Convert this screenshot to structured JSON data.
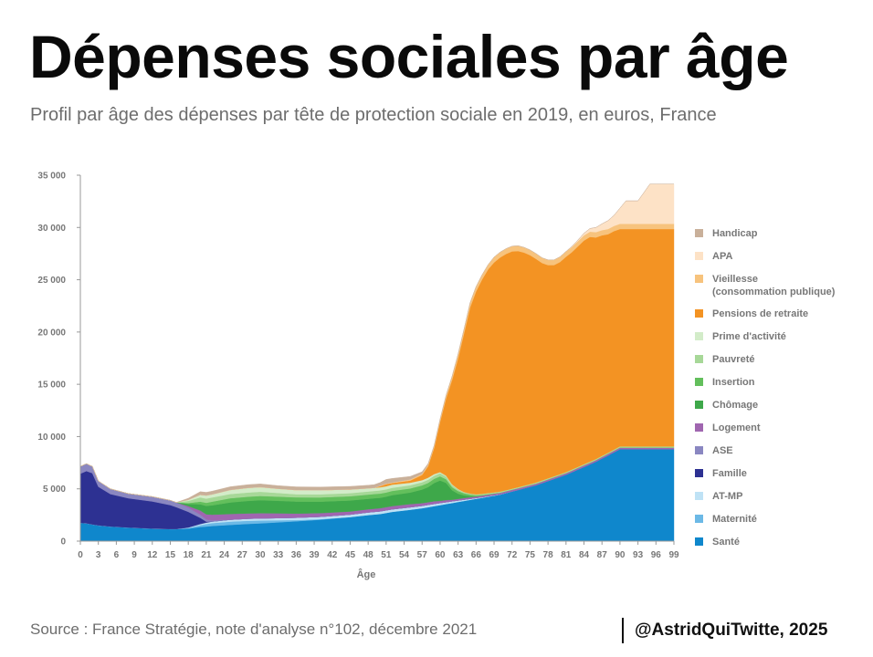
{
  "header": {
    "title": "Dépenses sociales par âge",
    "subtitle": "Profil par âge des dépenses par tête de protection sociale en 2019, en euros, France"
  },
  "footer": {
    "source": "Source : France Stratégie, note d'analyse n°102, décembre 2021",
    "credit": "@AstridQuiTwitte, 2025"
  },
  "chart_data": {
    "type": "area",
    "stacked": true,
    "xlabel": "Âge",
    "ylabel": "",
    "xlim": [
      0,
      99
    ],
    "ylim": [
      0,
      35000
    ],
    "x_ticks": [
      0,
      3,
      6,
      9,
      12,
      15,
      18,
      21,
      24,
      27,
      30,
      33,
      36,
      39,
      42,
      45,
      48,
      51,
      54,
      57,
      60,
      63,
      66,
      69,
      72,
      75,
      78,
      81,
      84,
      87,
      90,
      93,
      96,
      99
    ],
    "y_ticks": [
      0,
      5000,
      10000,
      15000,
      20000,
      25000,
      30000,
      35000
    ],
    "y_tick_labels": [
      "0",
      "5 000",
      "10 000",
      "15 000",
      "20 000",
      "25 000",
      "30 000",
      "35 000"
    ],
    "grid": false,
    "legend_position": "right",
    "x": [
      0,
      1,
      2,
      3,
      5,
      8,
      12,
      15,
      16,
      18,
      20,
      21,
      22,
      25,
      28,
      30,
      33,
      36,
      40,
      45,
      48,
      49,
      50,
      51,
      52,
      55,
      57,
      58,
      59,
      60,
      61,
      62,
      63,
      64,
      65,
      66,
      67,
      68,
      69,
      70,
      71,
      72,
      73,
      74,
      75,
      76,
      77,
      78,
      79,
      80,
      81,
      82,
      83,
      84,
      85,
      86,
      87,
      88,
      89,
      90,
      91,
      92,
      93,
      94,
      95,
      96,
      97,
      98,
      99
    ],
    "series": [
      {
        "name": "Santé",
        "color": "#0f87cc",
        "values": [
          1750,
          1700,
          1600,
          1500,
          1400,
          1300,
          1200,
          1150,
          1150,
          1200,
          1350,
          1400,
          1450,
          1550,
          1650,
          1700,
          1800,
          1900,
          2050,
          2300,
          2500,
          2550,
          2600,
          2700,
          2800,
          3000,
          3150,
          3250,
          3350,
          3450,
          3550,
          3650,
          3750,
          3850,
          3950,
          4050,
          4150,
          4250,
          4350,
          4450,
          4600,
          4750,
          4900,
          5050,
          5200,
          5350,
          5550,
          5750,
          5950,
          6150,
          6350,
          6600,
          6850,
          7100,
          7350,
          7600,
          7900,
          8200,
          8500,
          8800,
          8800,
          8800,
          8800,
          8800,
          8800,
          8800,
          8800,
          8800,
          8800
        ]
      },
      {
        "name": "Maternité",
        "color": "#6cb9e6",
        "values": [
          0,
          0,
          0,
          0,
          0,
          0,
          0,
          0,
          0,
          60,
          180,
          240,
          280,
          320,
          300,
          270,
          200,
          120,
          50,
          0,
          0,
          0,
          0,
          0,
          0,
          0,
          0,
          0,
          0,
          0,
          0,
          0,
          0,
          0,
          0,
          0,
          0,
          0,
          0,
          0,
          0,
          0,
          0,
          0,
          0,
          0,
          0,
          0,
          0,
          0,
          0,
          0,
          0,
          0,
          0,
          0,
          0,
          0,
          0,
          0,
          0,
          0,
          0,
          0,
          0,
          0,
          0,
          0,
          0
        ]
      },
      {
        "name": "AT-MP",
        "color": "#bfe2f5",
        "values": [
          0,
          0,
          0,
          0,
          0,
          0,
          0,
          0,
          0,
          40,
          100,
          130,
          150,
          180,
          200,
          200,
          210,
          220,
          230,
          240,
          250,
          250,
          250,
          250,
          250,
          240,
          230,
          220,
          210,
          200,
          180,
          160,
          140,
          120,
          100,
          80,
          60,
          50,
          40,
          30,
          20,
          10,
          0,
          0,
          0,
          0,
          0,
          0,
          0,
          0,
          0,
          0,
          0,
          0,
          0,
          0,
          0,
          0,
          0,
          0,
          0,
          0,
          0,
          0,
          0,
          0,
          0,
          0,
          0
        ]
      },
      {
        "name": "Famille",
        "color": "#2d3192",
        "values": [
          4700,
          5000,
          4900,
          3700,
          3100,
          2800,
          2600,
          2300,
          2100,
          1500,
          600,
          100,
          0,
          0,
          0,
          0,
          0,
          0,
          0,
          0,
          0,
          0,
          0,
          0,
          0,
          0,
          0,
          0,
          0,
          0,
          0,
          0,
          0,
          0,
          0,
          0,
          0,
          0,
          0,
          0,
          0,
          0,
          0,
          0,
          0,
          0,
          0,
          0,
          0,
          0,
          0,
          0,
          0,
          0,
          0,
          0,
          0,
          0,
          0,
          0,
          0,
          0,
          0,
          0,
          0,
          0,
          0,
          0,
          0
        ]
      },
      {
        "name": "ASE",
        "color": "#8a87c1",
        "values": [
          700,
          700,
          650,
          550,
          500,
          450,
          450,
          450,
          450,
          400,
          300,
          200,
          100,
          0,
          0,
          0,
          0,
          0,
          0,
          0,
          0,
          0,
          0,
          0,
          0,
          0,
          0,
          0,
          0,
          0,
          0,
          0,
          0,
          0,
          0,
          0,
          0,
          0,
          0,
          0,
          0,
          0,
          0,
          0,
          0,
          0,
          0,
          0,
          0,
          0,
          0,
          0,
          0,
          0,
          0,
          0,
          0,
          0,
          0,
          0,
          0,
          0,
          0,
          0,
          0,
          0,
          0,
          0,
          0
        ]
      },
      {
        "name": "Logement",
        "color": "#a066b0",
        "values": [
          0,
          0,
          0,
          0,
          0,
          0,
          0,
          0,
          0,
          150,
          400,
          500,
          550,
          550,
          500,
          500,
          450,
          400,
          350,
          300,
          300,
          300,
          300,
          300,
          300,
          300,
          250,
          250,
          250,
          200,
          200,
          150,
          150,
          150,
          150,
          150,
          150,
          150,
          150,
          150,
          150,
          150,
          150,
          150,
          150,
          150,
          150,
          150,
          150,
          150,
          150,
          150,
          150,
          150,
          150,
          150,
          150,
          150,
          150,
          150,
          150,
          150,
          150,
          150,
          150,
          150,
          150,
          150,
          150
        ]
      },
      {
        "name": "Chômage",
        "color": "#3ea84a",
        "values": [
          0,
          0,
          0,
          0,
          0,
          0,
          0,
          0,
          0,
          200,
          600,
          800,
          900,
          1100,
          1200,
          1250,
          1200,
          1150,
          1100,
          1050,
          1000,
          1000,
          1000,
          1000,
          1050,
          1100,
          1300,
          1450,
          1750,
          1950,
          1650,
          900,
          500,
          250,
          100,
          0,
          0,
          0,
          0,
          0,
          0,
          0,
          0,
          0,
          0,
          0,
          0,
          0,
          0,
          0,
          0,
          0,
          0,
          0,
          0,
          0,
          0,
          0,
          0,
          0,
          0,
          0,
          0,
          0,
          0,
          0,
          0,
          0,
          0
        ]
      },
      {
        "name": "Insertion",
        "color": "#63bf5c",
        "values": [
          0,
          0,
          0,
          0,
          0,
          0,
          0,
          0,
          0,
          100,
          250,
          300,
          350,
          400,
          400,
          400,
          400,
          400,
          400,
          400,
          400,
          400,
          400,
          400,
          400,
          400,
          400,
          400,
          400,
          400,
          350,
          300,
          250,
          200,
          150,
          100,
          60,
          40,
          20,
          0,
          0,
          0,
          0,
          0,
          0,
          0,
          0,
          0,
          0,
          0,
          0,
          0,
          0,
          0,
          0,
          0,
          0,
          0,
          0,
          0,
          0,
          0,
          0,
          0,
          0,
          0,
          0,
          0,
          0
        ]
      },
      {
        "name": "Pauvreté",
        "color": "#a7d898",
        "values": [
          0,
          0,
          0,
          0,
          0,
          0,
          0,
          0,
          0,
          200,
          400,
          400,
          400,
          400,
          400,
          400,
          350,
          300,
          300,
          300,
          300,
          300,
          300,
          300,
          300,
          300,
          300,
          300,
          300,
          300,
          250,
          200,
          150,
          100,
          100,
          100,
          100,
          100,
          100,
          100,
          100,
          100,
          100,
          100,
          100,
          100,
          100,
          100,
          100,
          100,
          100,
          100,
          100,
          100,
          100,
          100,
          100,
          100,
          100,
          100,
          100,
          100,
          100,
          100,
          100,
          100,
          100,
          100,
          100
        ]
      },
      {
        "name": "Prime d'activité",
        "color": "#d3ecc9",
        "values": [
          0,
          0,
          0,
          0,
          0,
          0,
          0,
          0,
          0,
          100,
          250,
          300,
          300,
          400,
          450,
          450,
          400,
          400,
          400,
          350,
          300,
          300,
          300,
          300,
          300,
          250,
          200,
          200,
          150,
          100,
          80,
          60,
          40,
          20,
          0,
          0,
          0,
          0,
          0,
          0,
          0,
          0,
          0,
          0,
          0,
          0,
          0,
          0,
          0,
          0,
          0,
          0,
          0,
          0,
          0,
          0,
          0,
          0,
          0,
          0,
          0,
          0,
          0,
          0,
          0,
          0,
          0,
          0,
          0
        ]
      },
      {
        "name": "Pensions de retraite",
        "color": "#f39323",
        "values": [
          0,
          0,
          0,
          0,
          0,
          0,
          0,
          0,
          0,
          0,
          0,
          0,
          0,
          0,
          0,
          0,
          0,
          0,
          0,
          0,
          0,
          0,
          100,
          200,
          150,
          200,
          500,
          1100,
          2500,
          4800,
          7400,
          10000,
          12500,
          15200,
          17800,
          19400,
          20500,
          21400,
          22000,
          22400,
          22600,
          22700,
          22600,
          22300,
          21900,
          21400,
          20800,
          20400,
          20200,
          20300,
          20600,
          20800,
          21100,
          21400,
          21500,
          21200,
          21100,
          20900,
          20900,
          20800,
          20800,
          20800,
          20800,
          20800,
          20800,
          20800,
          20800,
          20800,
          20800
        ]
      },
      {
        "name": "Vieillesse\n(consommation publique)",
        "color": "#f7c37d",
        "values": [
          0,
          0,
          0,
          0,
          0,
          0,
          0,
          0,
          0,
          0,
          0,
          0,
          0,
          0,
          0,
          0,
          0,
          0,
          0,
          0,
          0,
          0,
          50,
          50,
          50,
          100,
          100,
          150,
          200,
          250,
          300,
          350,
          400,
          400,
          450,
          450,
          450,
          450,
          500,
          500,
          500,
          500,
          500,
          500,
          500,
          500,
          500,
          500,
          500,
          500,
          500,
          500,
          500,
          500,
          500,
          500,
          500,
          500,
          500,
          500,
          500,
          500,
          500,
          500,
          500,
          500,
          500,
          500,
          500
        ]
      },
      {
        "name": "APA",
        "color": "#fde2c6",
        "values": [
          0,
          0,
          0,
          0,
          0,
          0,
          0,
          0,
          0,
          0,
          0,
          0,
          0,
          0,
          0,
          0,
          0,
          0,
          0,
          0,
          0,
          0,
          0,
          0,
          0,
          0,
          0,
          0,
          0,
          0,
          0,
          0,
          0,
          0,
          0,
          0,
          0,
          0,
          0,
          0,
          0,
          0,
          0,
          0,
          0,
          0,
          0,
          0,
          0,
          0,
          0,
          50,
          100,
          200,
          300,
          450,
          600,
          800,
          1000,
          1500,
          2200,
          2200,
          2200,
          3000,
          3800,
          3800,
          3800,
          3800,
          3800
        ]
      },
      {
        "name": "Handicap",
        "color": "#c9b09a",
        "values": [
          0,
          0,
          0,
          0,
          0,
          0,
          0,
          0,
          0,
          150,
          300,
          300,
          300,
          300,
          300,
          300,
          300,
          300,
          300,
          300,
          300,
          300,
          300,
          400,
          400,
          300,
          200,
          100,
          50,
          0,
          0,
          0,
          0,
          0,
          0,
          0,
          0,
          0,
          0,
          0,
          0,
          0,
          0,
          0,
          0,
          0,
          0,
          0,
          0,
          0,
          0,
          0,
          0,
          0,
          0,
          0,
          0,
          0,
          0,
          0,
          0,
          0,
          0,
          0,
          0,
          0,
          0,
          0,
          0
        ]
      }
    ],
    "legend": [
      "Handicap",
      "APA",
      "Vieillesse\n(consommation publique)",
      "Pensions de retraite",
      "Prime d'activité",
      "Pauvreté",
      "Insertion",
      "Chômage",
      "Logement",
      "ASE",
      "Famille",
      "AT-MP",
      "Maternité",
      "Santé"
    ]
  }
}
